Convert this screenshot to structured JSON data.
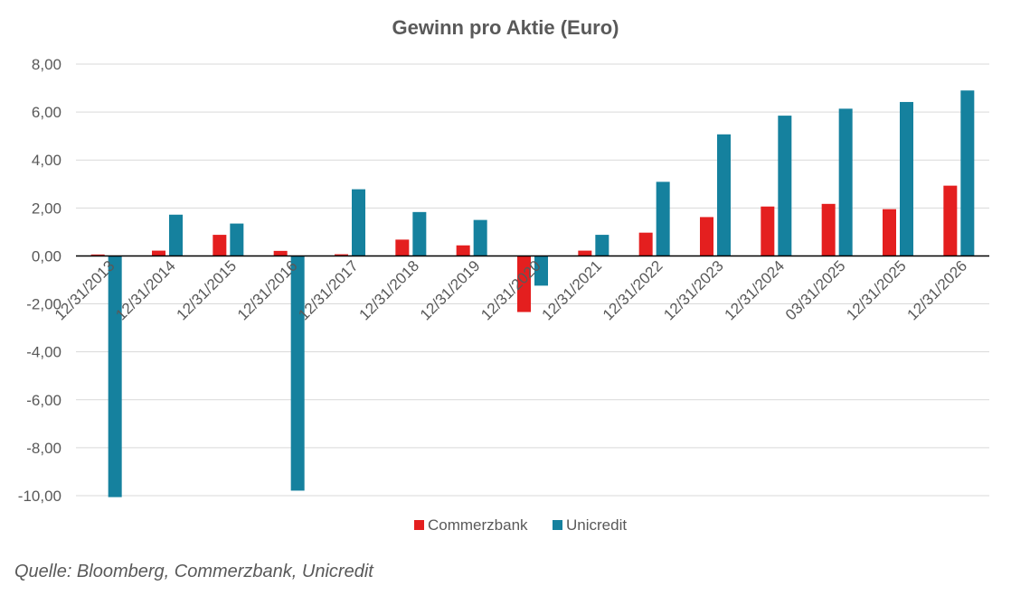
{
  "chart_data": {
    "type": "bar",
    "title": "Gewinn pro Aktie (Euro)",
    "xlabel": "",
    "ylabel": "",
    "ylim": [
      -10,
      8
    ],
    "y_ticks": [
      "8,00",
      "6,00",
      "4,00",
      "2,00",
      "0,00",
      "-2,00",
      "-4,00",
      "-6,00",
      "-8,00",
      "-10,00"
    ],
    "categories": [
      "12/31/2013",
      "12/31/2014",
      "12/31/2015",
      "12/31/2016",
      "12/31/2017",
      "12/31/2018",
      "12/31/2019",
      "12/31/2020",
      "12/31/2021",
      "12/31/2022",
      "12/31/2023",
      "12/31/2024",
      "03/31/2025",
      "12/31/2025",
      "12/31/2026"
    ],
    "series": [
      {
        "name": "Commerzbank",
        "color": "#e41f1f",
        "values": [
          0.06,
          0.22,
          0.88,
          0.21,
          0.07,
          0.68,
          0.44,
          -2.34,
          0.22,
          0.97,
          1.62,
          2.06,
          2.17,
          1.95,
          2.93
        ]
      },
      {
        "name": "Unicredit",
        "color": "#15819e",
        "values": [
          -10.06,
          1.72,
          1.35,
          -9.79,
          2.78,
          1.83,
          1.5,
          -1.24,
          0.88,
          3.09,
          5.07,
          5.85,
          6.14,
          6.42,
          6.9
        ]
      }
    ],
    "grid": true,
    "legend_position": "bottom"
  },
  "source_note": "Quelle: Bloomberg, Commerzbank, Unicredit"
}
